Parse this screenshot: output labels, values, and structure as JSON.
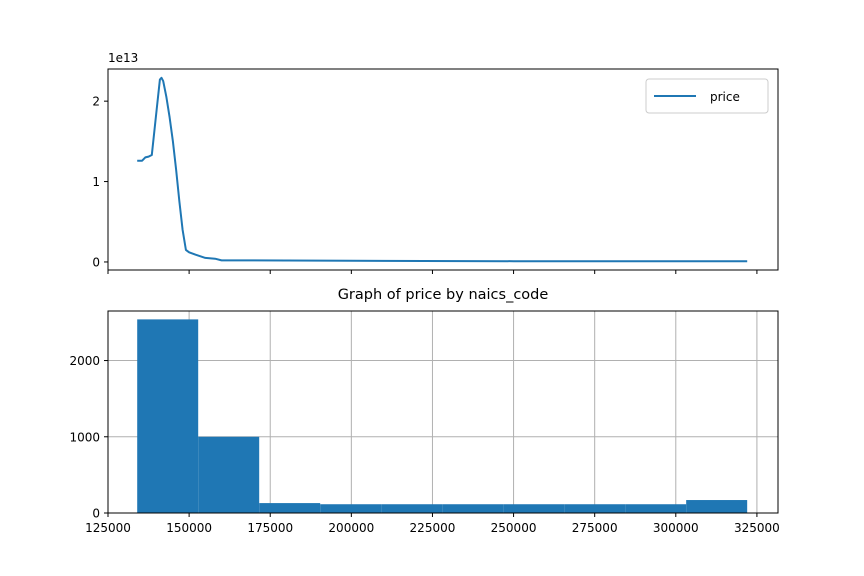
{
  "colors": {
    "series": "#1f77b4",
    "grid": "#b0b0b0",
    "axis": "#000000"
  },
  "chart_data": [
    {
      "type": "line",
      "title": "",
      "xlabel": "",
      "ylabel": "",
      "y_offset_label": "1e13",
      "xlim": [
        125000,
        331500
      ],
      "ylim": [
        -0.1,
        2.4
      ],
      "yticks": [
        0,
        1,
        2
      ],
      "ytick_labels": [
        "0",
        "1",
        "2"
      ],
      "xticks": [
        125000,
        150000,
        175000,
        200000,
        225000,
        250000,
        275000,
        300000,
        325000
      ],
      "show_xtick_labels": false,
      "legend": {
        "position": "top-right",
        "entries": [
          "price"
        ]
      },
      "series": [
        {
          "name": "price",
          "x": [
            134000,
            135500,
            136500,
            137500,
            138500,
            140000,
            141000,
            141500,
            142000,
            142500,
            143000,
            144000,
            145000,
            146000,
            147000,
            148000,
            149000,
            150000,
            152000,
            155000,
            158000,
            160000,
            170000,
            200000,
            250000,
            300000,
            322000
          ],
          "y": [
            1.26,
            1.26,
            1.3,
            1.31,
            1.33,
            1.9,
            2.27,
            2.29,
            2.25,
            2.15,
            2.05,
            1.8,
            1.5,
            1.15,
            0.75,
            0.4,
            0.15,
            0.12,
            0.09,
            0.05,
            0.04,
            0.02,
            0.02,
            0.015,
            0.01,
            0.01,
            0.01
          ]
        }
      ]
    },
    {
      "type": "bar",
      "title": "Graph of price by naics_code",
      "xlabel": "",
      "ylabel": "",
      "xlim": [
        125000,
        331500
      ],
      "ylim": [
        0,
        2650
      ],
      "grid": true,
      "xticks": [
        125000,
        150000,
        175000,
        200000,
        225000,
        250000,
        275000,
        300000,
        325000
      ],
      "xtick_labels": [
        "125000",
        "150000",
        "175000",
        "200000",
        "225000",
        "250000",
        "275000",
        "300000",
        "325000"
      ],
      "yticks": [
        0,
        1000,
        2000
      ],
      "ytick_labels": [
        "0",
        "1000",
        "2000"
      ],
      "bin_edges": [
        134000,
        152800,
        171600,
        190400,
        209200,
        228000,
        246800,
        265600,
        284400,
        303200,
        322000
      ],
      "values": [
        2540,
        1000,
        130,
        115,
        115,
        115,
        115,
        115,
        115,
        170
      ]
    }
  ]
}
